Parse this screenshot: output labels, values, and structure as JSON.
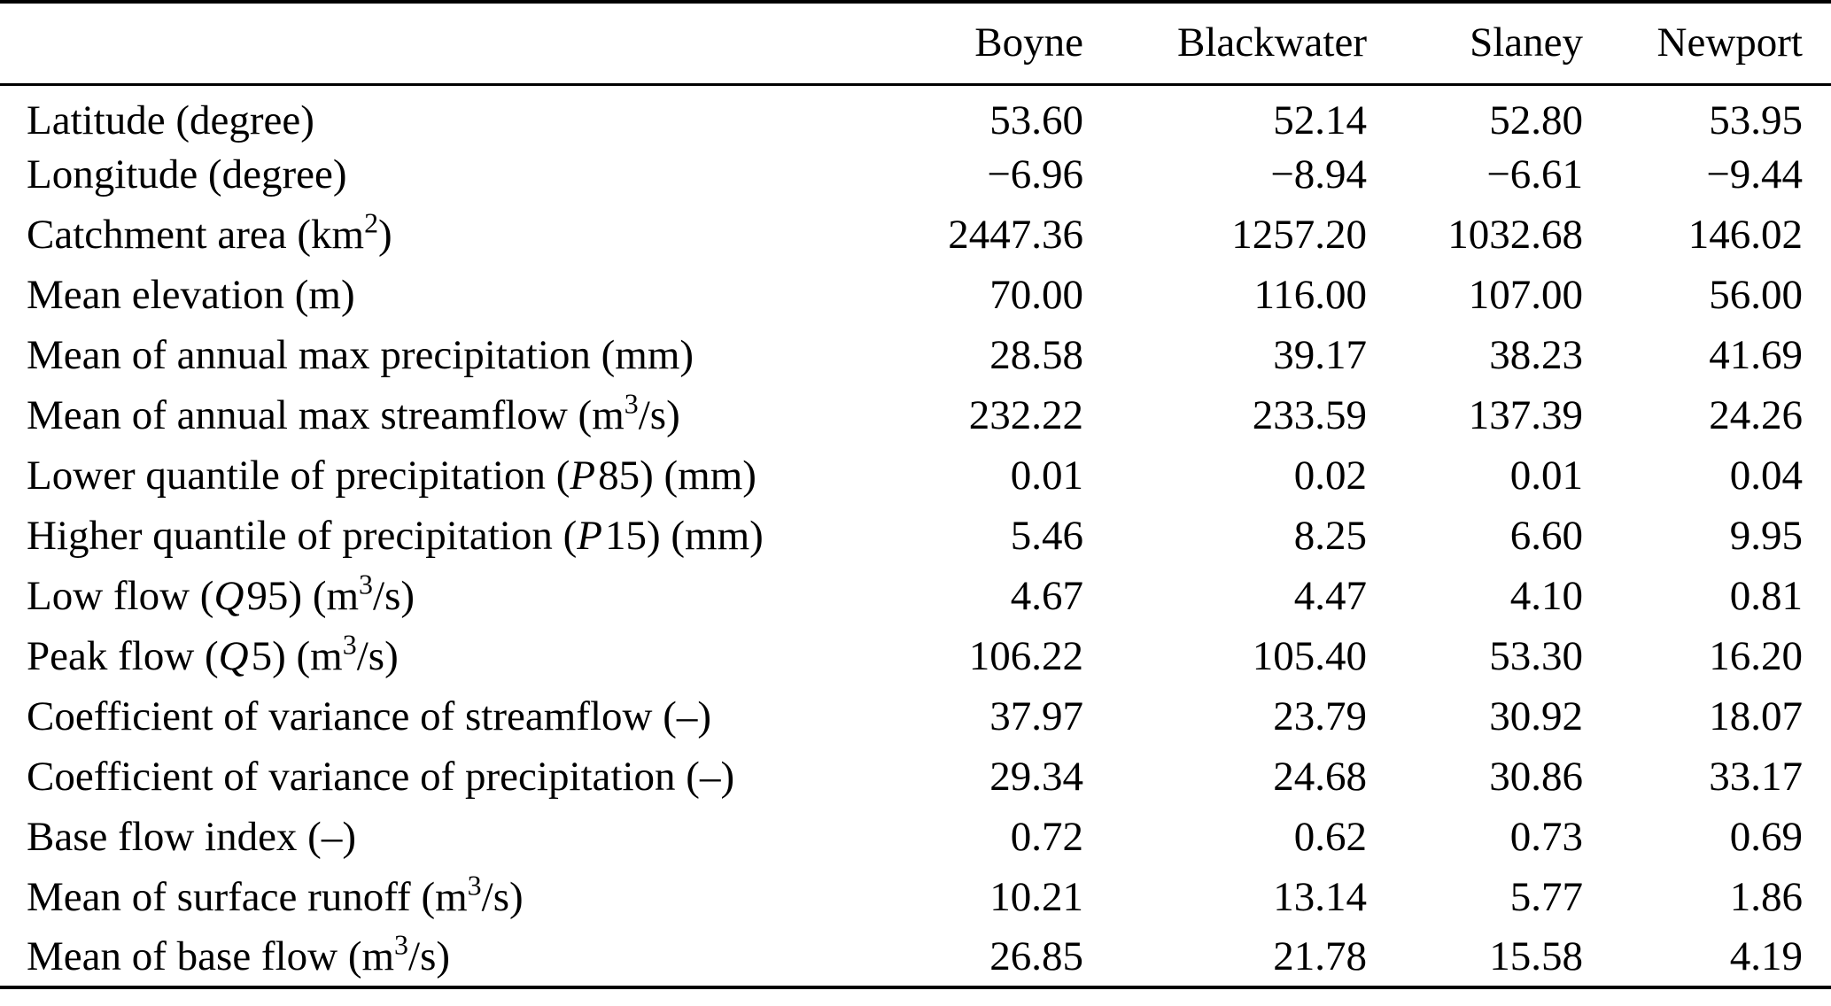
{
  "table": {
    "headers": [
      "",
      "Boyne",
      "Blackwater",
      "Slaney",
      "Newport"
    ],
    "rows": [
      {
        "label": [
          {
            "s": "t",
            "v": "Latitude (degree)"
          }
        ],
        "values": [
          "53.60",
          "52.14",
          "52.80",
          "53.95"
        ]
      },
      {
        "label": [
          {
            "s": "t",
            "v": "Longitude (degree)"
          }
        ],
        "values": [
          "−6.96",
          "−8.94",
          "−6.61",
          "−9.44"
        ]
      },
      {
        "label": [
          {
            "s": "t",
            "v": "Catchment area (km"
          },
          {
            "s": "sup",
            "v": "2"
          },
          {
            "s": "t",
            "v": ")"
          }
        ],
        "values": [
          "2447.36",
          "1257.20",
          "1032.68",
          "146.02"
        ]
      },
      {
        "label": [
          {
            "s": "t",
            "v": "Mean elevation (m)"
          }
        ],
        "values": [
          "70.00",
          "116.00",
          "107.00",
          "56.00"
        ]
      },
      {
        "label": [
          {
            "s": "t",
            "v": "Mean of annual max precipitation (mm)"
          }
        ],
        "values": [
          "28.58",
          "39.17",
          "38.23",
          "41.69"
        ]
      },
      {
        "label": [
          {
            "s": "t",
            "v": "Mean of annual max streamflow (m"
          },
          {
            "s": "sup",
            "v": "3"
          },
          {
            "s": "t",
            "v": "/s)"
          }
        ],
        "values": [
          "232.22",
          "233.59",
          "137.39",
          "24.26"
        ]
      },
      {
        "label": [
          {
            "s": "t",
            "v": "Lower quantile of precipitation ("
          },
          {
            "s": "i",
            "v": "P"
          },
          {
            "s": "t",
            "v": "85) (mm)"
          }
        ],
        "values": [
          "0.01",
          "0.02",
          "0.01",
          "0.04"
        ]
      },
      {
        "label": [
          {
            "s": "t",
            "v": "Higher quantile of precipitation ("
          },
          {
            "s": "i",
            "v": "P"
          },
          {
            "s": "t",
            "v": "15) (mm)"
          }
        ],
        "values": [
          "5.46",
          "8.25",
          "6.60",
          "9.95"
        ]
      },
      {
        "label": [
          {
            "s": "t",
            "v": "Low flow ("
          },
          {
            "s": "i",
            "v": "Q"
          },
          {
            "s": "t",
            "v": "95) (m"
          },
          {
            "s": "sup",
            "v": "3"
          },
          {
            "s": "t",
            "v": "/s)"
          }
        ],
        "values": [
          "4.67",
          "4.47",
          "4.10",
          "0.81"
        ]
      },
      {
        "label": [
          {
            "s": "t",
            "v": "Peak flow ("
          },
          {
            "s": "i",
            "v": "Q"
          },
          {
            "s": "t",
            "v": "5) (m"
          },
          {
            "s": "sup",
            "v": "3"
          },
          {
            "s": "t",
            "v": "/s)"
          }
        ],
        "values": [
          "106.22",
          "105.40",
          "53.30",
          "16.20"
        ]
      },
      {
        "label": [
          {
            "s": "t",
            "v": "Coefficient of variance of streamflow (–)"
          }
        ],
        "values": [
          "37.97",
          "23.79",
          "30.92",
          "18.07"
        ]
      },
      {
        "label": [
          {
            "s": "t",
            "v": "Coefficient of variance of precipitation (–)"
          }
        ],
        "values": [
          "29.34",
          "24.68",
          "30.86",
          "33.17"
        ]
      },
      {
        "label": [
          {
            "s": "t",
            "v": "Base flow index (–)"
          }
        ],
        "values": [
          "0.72",
          "0.62",
          "0.73",
          "0.69"
        ]
      },
      {
        "label": [
          {
            "s": "t",
            "v": "Mean of surface runoff (m"
          },
          {
            "s": "sup",
            "v": "3"
          },
          {
            "s": "t",
            "v": "/s)"
          }
        ],
        "values": [
          "10.21",
          "13.14",
          "5.77",
          "1.86"
        ]
      },
      {
        "label": [
          {
            "s": "t",
            "v": "Mean of base flow (m"
          },
          {
            "s": "sup",
            "v": "3"
          },
          {
            "s": "t",
            "v": "/s)"
          }
        ],
        "values": [
          "26.85",
          "21.78",
          "15.58",
          "4.19"
        ]
      }
    ]
  },
  "colors": {
    "text": "#000000",
    "background": "#ffffff",
    "rule": "#000000"
  }
}
